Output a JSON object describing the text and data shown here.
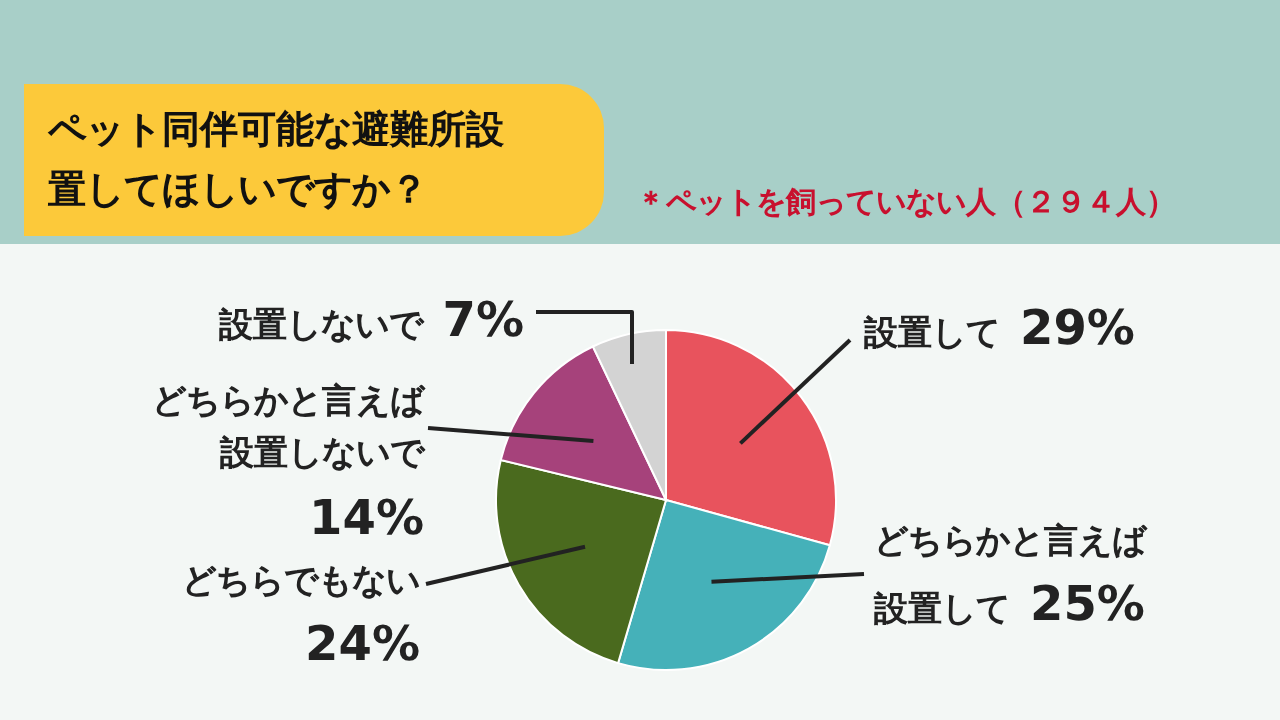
{
  "chart_data": {
    "type": "pie",
    "title": "ペット同伴可能な避難所設置してほしいですか？",
    "subtitle": "＊ペットを飼っていない人（２９４人）",
    "categories": [
      "設置して",
      "どちらかと言えば設置して",
      "どちらでもない",
      "どちらかと言えば設置しないで",
      "設置しないで"
    ],
    "values": [
      29,
      25,
      24,
      14,
      7
    ],
    "value_labels": [
      "29%",
      "25%",
      "24%",
      "14%",
      "7%"
    ],
    "colors": [
      "#e8535d",
      "#45b1b9",
      "#4a6a1e",
      "#a6427b",
      "#d3d3d3"
    ]
  }
}
